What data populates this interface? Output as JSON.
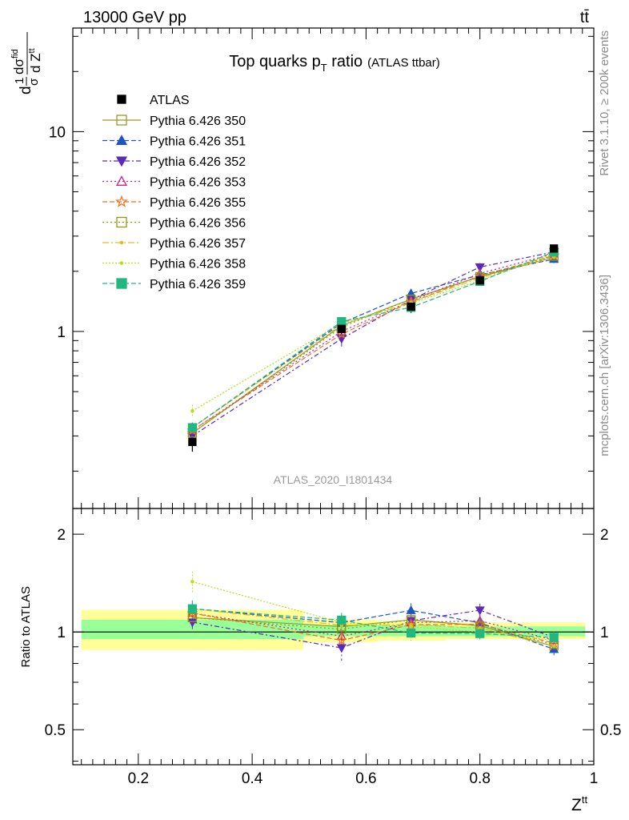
{
  "header": {
    "beam_label": "13000 GeV pp",
    "process_label": "tt̄"
  },
  "side_labels": {
    "rivet": "Rivet 3.1.10, ≥ 200k events",
    "mcplots": "mcplots.cern.ch [arXiv:1306.3436]"
  },
  "chart_data": {
    "type": "line",
    "title": {
      "main": "Top quarks p",
      "sub": "T",
      "rest": " ratio",
      "small": "(ATLAS ttbar)"
    },
    "analysis_id": "ATLAS_2020_I1801434",
    "xlabel": {
      "main": "Z",
      "sup": "tt"
    },
    "ylabel": {
      "prefix": "d",
      "frac_num": "1",
      "frac_den": "σ",
      "dsigma": "dσ",
      "dsigma_sup": "fid",
      "denom": "d Z",
      "denom_sup": "tt"
    },
    "ratio_ylabel": "Ratio to ATLAS",
    "x_range": [
      0.085,
      1.0
    ],
    "y_range_log": [
      0.13,
      33
    ],
    "ratio_range": [
      0.39,
      2.4
    ],
    "x_ticks": [
      {
        "v": 0.2,
        "label": "0.2"
      },
      {
        "v": 0.4,
        "label": "0.4"
      },
      {
        "v": 0.6,
        "label": "0.6"
      },
      {
        "v": 0.8,
        "label": "0.8"
      },
      {
        "v": 1.0,
        "label": "1"
      }
    ],
    "y_ticks": [
      {
        "v": 1,
        "label": "1"
      },
      {
        "v": 10,
        "label": "10"
      }
    ],
    "ratio_ticks": [
      {
        "v": 0.5,
        "label": "0.5"
      },
      {
        "v": 1,
        "label": "1"
      },
      {
        "v": 2,
        "label": "2"
      }
    ],
    "x": [
      0.295,
      0.557,
      0.679,
      0.8,
      0.93
    ],
    "data": {
      "name": "ATLAS",
      "values": [
        0.28,
        1.03,
        1.33,
        1.8,
        2.6
      ],
      "errors": [
        0.03,
        0.08,
        0.09,
        0.1,
        0.12
      ],
      "color": "#000000"
    },
    "bands": [
      {
        "x0": 0.1,
        "x1": 0.49,
        "inner": [
          0.95,
          1.09
        ],
        "outer": [
          0.88,
          1.17
        ]
      },
      {
        "x0": 0.49,
        "x1": 0.62,
        "inner": [
          0.97,
          1.05
        ],
        "outer": [
          0.93,
          1.09
        ]
      },
      {
        "x0": 0.62,
        "x1": 0.74,
        "inner": [
          0.97,
          1.05
        ],
        "outer": [
          0.94,
          1.08
        ]
      },
      {
        "x0": 0.74,
        "x1": 0.86,
        "inner": [
          0.97,
          1.04
        ],
        "outer": [
          0.95,
          1.07
        ]
      },
      {
        "x0": 0.86,
        "x1": 0.985,
        "inner": [
          0.97,
          1.04
        ],
        "outer": [
          0.95,
          1.07
        ]
      }
    ],
    "band_colors": {
      "inner": "#99ff99",
      "outer": "#ffff99"
    },
    "series": [
      {
        "name": "Pythia 6.426 350",
        "color": "#9a9a2a",
        "dash": "",
        "marker": "square-open",
        "values": [
          0.31,
          1.07,
          1.45,
          1.88,
          2.35
        ],
        "errors": [
          0.02,
          0.06,
          0.07,
          0.08,
          0.1
        ]
      },
      {
        "name": "Pythia 6.426 351",
        "color": "#1f55c2",
        "dash": "6,3",
        "marker": "triangle-up-filled",
        "values": [
          0.33,
          1.1,
          1.55,
          1.92,
          2.3
        ],
        "errors": [
          0.02,
          0.06,
          0.08,
          0.08,
          0.1
        ]
      },
      {
        "name": "Pythia 6.426 352",
        "color": "#5a2ab8",
        "dash": "6,3,2,3",
        "marker": "triangle-down-filled",
        "values": [
          0.3,
          0.92,
          1.44,
          2.1,
          2.5
        ],
        "errors": [
          0.02,
          0.08,
          0.08,
          0.1,
          0.1
        ]
      },
      {
        "name": "Pythia 6.426 353",
        "color": "#c0288c",
        "dash": "2,3",
        "marker": "triangle-up-open",
        "values": [
          0.32,
          1.0,
          1.42,
          1.95,
          2.45
        ],
        "errors": [
          0.02,
          0.06,
          0.07,
          0.08,
          0.1
        ]
      },
      {
        "name": "Pythia 6.426 355",
        "color": "#f07020",
        "dash": "6,3",
        "marker": "star-open",
        "values": [
          0.32,
          0.97,
          1.4,
          1.9,
          2.4
        ],
        "errors": [
          0.02,
          0.06,
          0.07,
          0.08,
          0.1
        ]
      },
      {
        "name": "Pythia 6.426 356",
        "color": "#8c9a10",
        "dash": "2,3",
        "marker": "square-open",
        "values": [
          0.31,
          1.05,
          1.45,
          1.88,
          2.38
        ],
        "errors": [
          0.02,
          0.06,
          0.07,
          0.08,
          0.1
        ]
      },
      {
        "name": "Pythia 6.426 357",
        "color": "#d8c020",
        "dash": "8,3,2,3",
        "marker": "dot",
        "values": [
          0.33,
          1.08,
          1.4,
          1.85,
          2.35
        ],
        "errors": [
          0.02,
          0.06,
          0.07,
          0.08,
          0.1
        ]
      },
      {
        "name": "Pythia 6.426 358",
        "color": "#b8dc20",
        "dash": "2,2",
        "marker": "dot",
        "values": [
          0.4,
          1.1,
          1.38,
          1.8,
          2.45
        ],
        "errors": [
          0.03,
          0.06,
          0.07,
          0.08,
          0.1
        ]
      },
      {
        "name": "Pythia 6.426 359",
        "color": "#20b880",
        "dash": "6,3",
        "marker": "square-filled",
        "values": [
          0.33,
          1.12,
          1.32,
          1.78,
          2.5
        ],
        "errors": [
          0.02,
          0.06,
          0.07,
          0.08,
          0.1
        ]
      }
    ]
  }
}
